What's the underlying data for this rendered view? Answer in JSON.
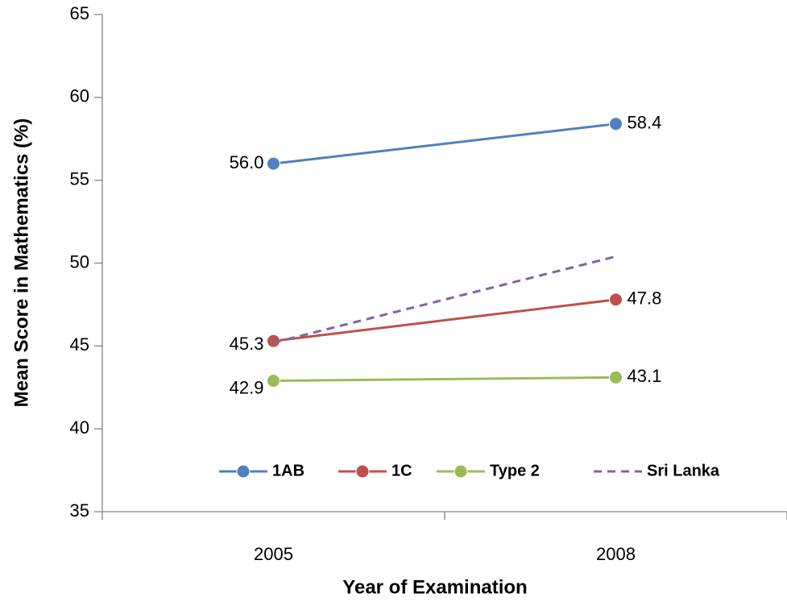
{
  "chart_data": {
    "type": "line",
    "x_label": "Year of Examination",
    "y_label": "Mean Score in Mathematics (%)",
    "categories": [
      "2005",
      "2008"
    ],
    "series": [
      {
        "name": "1AB",
        "color": "#4f81bd",
        "values": [
          56.0,
          58.4
        ],
        "value_labels": [
          "56.0",
          "58.4"
        ],
        "marker": true,
        "dashed": false
      },
      {
        "name": "1C",
        "color": "#c0504d",
        "values": [
          45.3,
          47.8
        ],
        "value_labels": [
          "45.3",
          "47.8"
        ],
        "marker": true,
        "dashed": false
      },
      {
        "name": "Type 2",
        "color": "#9bbb59",
        "values": [
          42.9,
          43.1
        ],
        "value_labels": [
          "42.9",
          "43.1"
        ],
        "marker": true,
        "dashed": false
      },
      {
        "name": "Sri Lanka",
        "color": "#8064a2",
        "values": [
          45.2,
          50.4
        ],
        "marker": false,
        "dashed": true
      }
    ],
    "ylim": [
      35,
      65
    ],
    "yticks": [
      35,
      40,
      45,
      50,
      55,
      60,
      65
    ],
    "grid": false,
    "legend": "bottom"
  }
}
